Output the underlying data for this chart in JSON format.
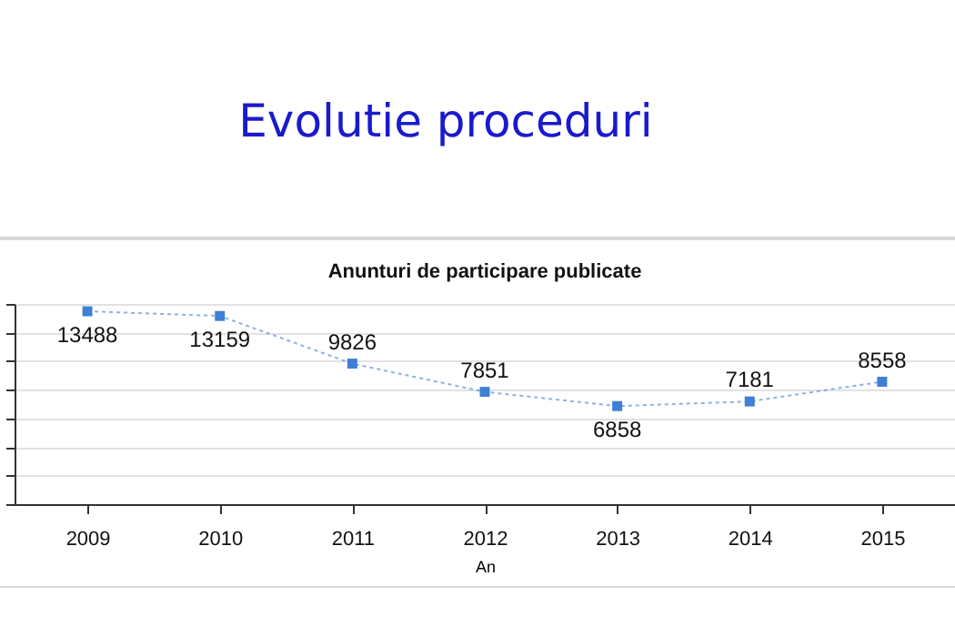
{
  "chart_data": {
    "type": "line",
    "title": "Evolutie proceduri",
    "subtitle": "Anunturi de participare publicate",
    "xlabel": "An",
    "categories": [
      "2009",
      "2010",
      "2011",
      "2012",
      "2013",
      "2014",
      "2015"
    ],
    "series": [
      {
        "color": "#3f7fd6",
        "values": [
          13488,
          13159,
          9826,
          7851,
          6858,
          7181,
          8558
        ]
      }
    ],
    "tick_labels": "x",
    "grid": "y",
    "data_labels": true,
    "marker": "square",
    "line_style": "dotted",
    "legend": false
  }
}
